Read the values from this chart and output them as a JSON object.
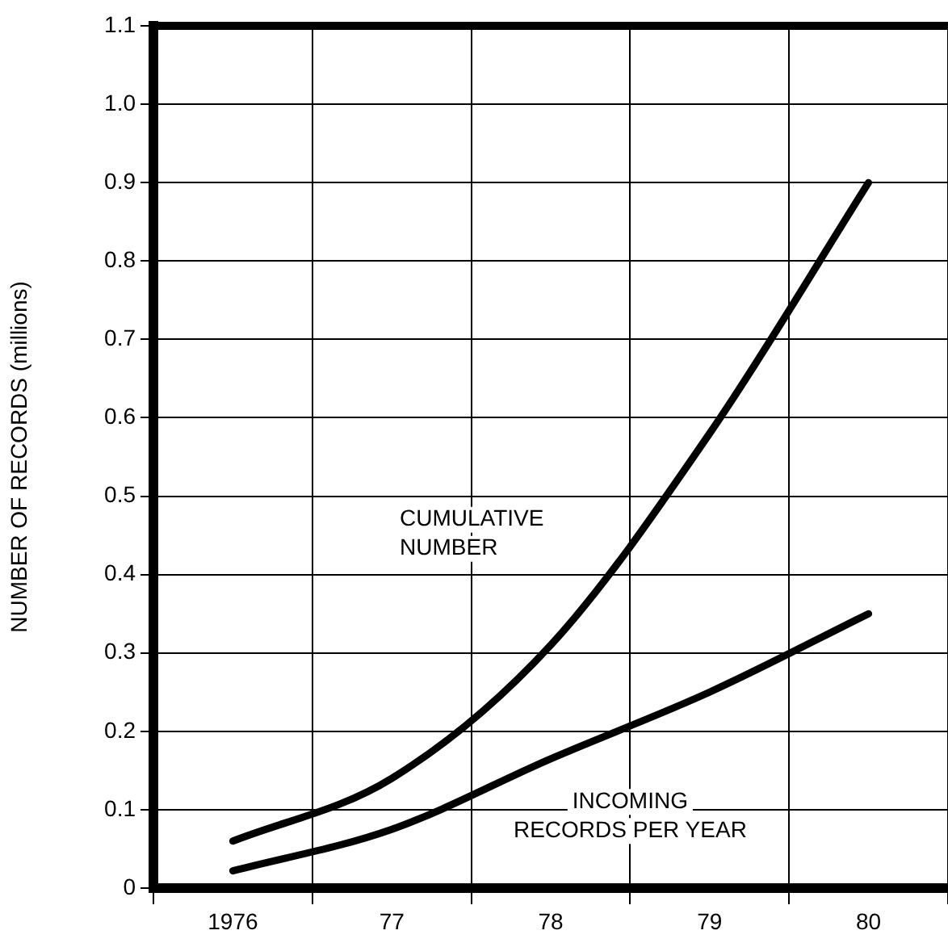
{
  "chart_data": {
    "type": "line",
    "ylabel": "NUMBER OF RECORDS (millions)",
    "categories": [
      "1976",
      "77",
      "78",
      "79",
      "80"
    ],
    "ylim": [
      0,
      1.1
    ],
    "yticks": [
      {
        "value": 0,
        "label": "0"
      },
      {
        "value": 0.1,
        "label": "0.1"
      },
      {
        "value": 0.2,
        "label": "0.2"
      },
      {
        "value": 0.3,
        "label": "0.3"
      },
      {
        "value": 0.4,
        "label": "0.4"
      },
      {
        "value": 0.5,
        "label": "0.5"
      },
      {
        "value": 0.6,
        "label": "0.6"
      },
      {
        "value": 0.7,
        "label": "0.7"
      },
      {
        "value": 0.8,
        "label": "0.8"
      },
      {
        "value": 0.9,
        "label": "0.9"
      },
      {
        "value": 1.0,
        "label": "1.0"
      },
      {
        "value": 1.1,
        "label": "1.1"
      }
    ],
    "grid": true,
    "legend": false,
    "marker": "none",
    "line_style": "solid",
    "series": [
      {
        "name": "CUMULATIVE NUMBER",
        "color": "#000000",
        "values": [
          0.06,
          0.14,
          0.31,
          0.58,
          0.9
        ]
      },
      {
        "name": "INCOMING RECORDS PER YEAR",
        "color": "#000000",
        "values": [
          0.022,
          0.075,
          0.165,
          0.25,
          0.35
        ]
      }
    ]
  }
}
